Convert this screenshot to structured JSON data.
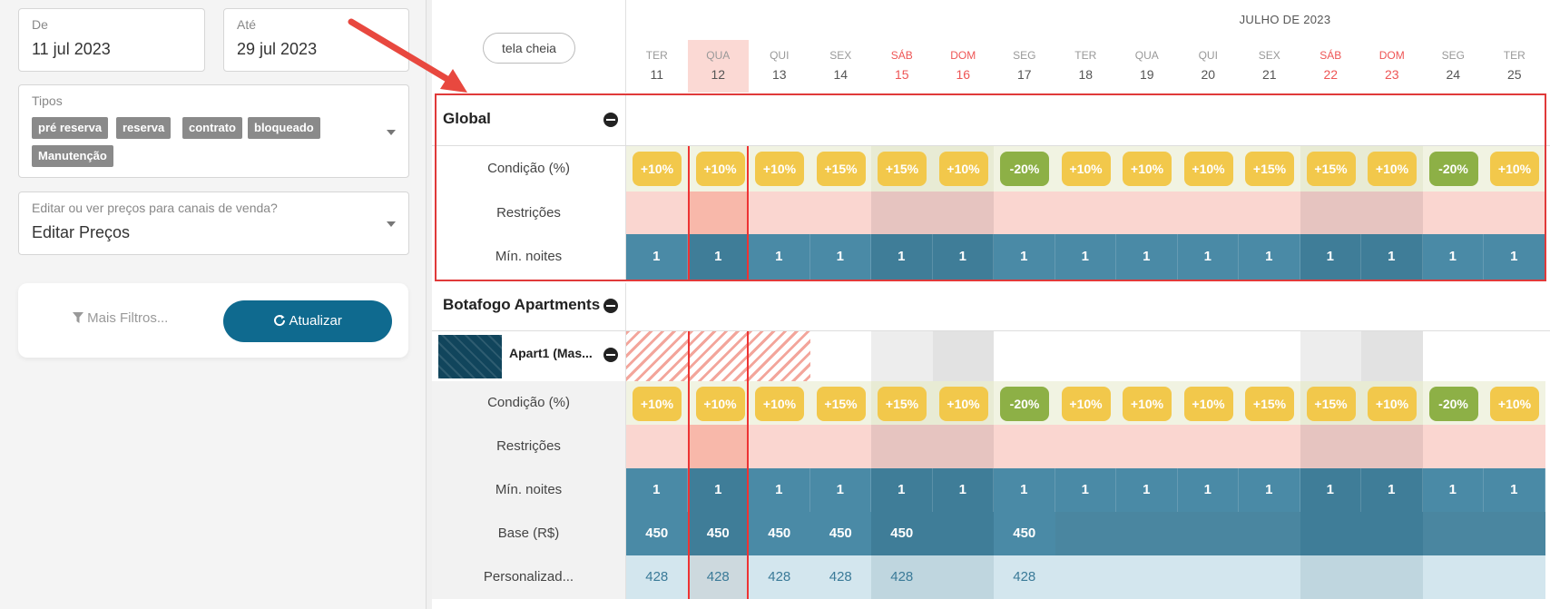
{
  "filters": {
    "from": {
      "label": "De",
      "value": "11 jul 2023"
    },
    "to": {
      "label": "Até",
      "value": "29 jul 2023"
    },
    "types": {
      "label": "Tipos",
      "tags": [
        "pré reserva",
        "reserva",
        "contrato",
        "bloqueado",
        "Manutenção"
      ]
    },
    "channel": {
      "label": "Editar ou ver preços para canais de venda?",
      "value": "Editar Preços"
    },
    "more_filters": "Mais Filtros...",
    "refresh": "Atualizar"
  },
  "calendar": {
    "fullscreen": "tela cheia",
    "month": "JULHO DE 2023",
    "days": [
      {
        "name": "TER",
        "num": "11"
      },
      {
        "name": "QUA",
        "num": "12"
      },
      {
        "name": "QUI",
        "num": "13"
      },
      {
        "name": "SEX",
        "num": "14"
      },
      {
        "name": "SÁB",
        "num": "15"
      },
      {
        "name": "DOM",
        "num": "16"
      },
      {
        "name": "SEG",
        "num": "17"
      },
      {
        "name": "TER",
        "num": "18"
      },
      {
        "name": "QUA",
        "num": "19"
      },
      {
        "name": "QUI",
        "num": "20"
      },
      {
        "name": "SEX",
        "num": "21"
      },
      {
        "name": "SÁB",
        "num": "22"
      },
      {
        "name": "DOM",
        "num": "23"
      },
      {
        "name": "SEG",
        "num": "24"
      },
      {
        "name": "TER",
        "num": "25"
      }
    ],
    "global": {
      "title": "Global",
      "rows": {
        "condition": "Condição (%)",
        "restrictions": "Restrições",
        "min_nights": "Mín. noites"
      },
      "conditions": [
        "+10%",
        "+10%",
        "+10%",
        "+15%",
        "+15%",
        "+10%",
        "-20%",
        "+10%",
        "+10%",
        "+10%",
        "+15%",
        "+15%",
        "+10%",
        "-20%",
        "+10%"
      ],
      "min_nights": [
        "1",
        "1",
        "1",
        "1",
        "1",
        "1",
        "1",
        "1",
        "1",
        "1",
        "1",
        "1",
        "1",
        "1",
        "1"
      ]
    },
    "property": {
      "title": "Botafogo Apartments",
      "unit": "Apart1 (Mas...",
      "rows": {
        "condition": "Condição (%)",
        "restrictions": "Restrições",
        "min_nights": "Mín. noites",
        "base": "Base (R$)",
        "custom": "Personalizad..."
      },
      "conditions": [
        "+10%",
        "+10%",
        "+10%",
        "+15%",
        "+15%",
        "+10%",
        "-20%",
        "+10%",
        "+10%",
        "+10%",
        "+15%",
        "+15%",
        "+10%",
        "-20%",
        "+10%"
      ],
      "min_nights": [
        "1",
        "1",
        "1",
        "1",
        "1",
        "1",
        "1",
        "1",
        "1",
        "1",
        "1",
        "1",
        "1",
        "1",
        "1"
      ],
      "base": [
        "450",
        "450",
        "450",
        "450",
        "450",
        "",
        "450",
        "",
        "",
        "",
        "",
        "",
        "",
        "",
        ""
      ],
      "custom": [
        "428",
        "428",
        "428",
        "428",
        "428",
        "",
        "428",
        "",
        "",
        "",
        "",
        "",
        "",
        "",
        ""
      ]
    }
  },
  "colors": {
    "accent": "#0f6a8f",
    "yellow": "#f2c84b",
    "green": "#8db046",
    "teal": "#4a8aa6",
    "lightblue": "#d3e6ee",
    "pink": "#fad6d0"
  }
}
